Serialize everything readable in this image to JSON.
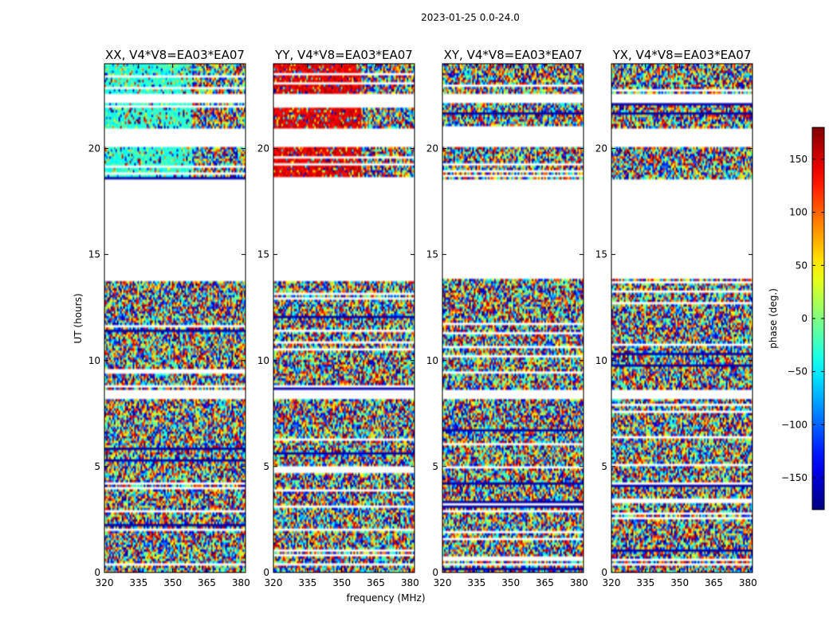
{
  "chart_data": {
    "type": "heatmap",
    "figure_title": "2023-01-25 0.0-24.0",
    "xlabel": "frequency (MHz)",
    "ylabel": "UT (hours)",
    "xlim": [
      320,
      382
    ],
    "ylim": [
      0,
      24
    ],
    "x_ticks": [
      320,
      335,
      350,
      365,
      380
    ],
    "y_ticks": [
      0,
      5,
      10,
      15,
      20
    ],
    "panels": [
      {
        "title": "XX, V4*V8=EA03*EA07",
        "tint_phase": -30,
        "tint_region": "upper"
      },
      {
        "title": "YY, V4*V8=EA03*EA07",
        "tint_phase": 145,
        "tint_region": "upper"
      },
      {
        "title": "XY, V4*V8=EA03*EA07",
        "tint_phase": null,
        "tint_region": "none"
      },
      {
        "title": "YX, V4*V8=EA03*EA07",
        "tint_phase": null,
        "tint_region": "none"
      }
    ],
    "data_gaps_hours": [
      [
        13.9,
        18.5
      ],
      [
        20.1,
        20.9
      ],
      [
        8.2,
        8.6
      ],
      [
        0.3,
        0.45
      ],
      [
        22.2,
        22.6
      ]
    ],
    "colorbar": {
      "label": "phase (deg.)",
      "range": [
        -180,
        180
      ],
      "ticks": [
        150,
        100,
        50,
        0,
        -50,
        -100,
        -150
      ],
      "tick_labels": [
        "150",
        "100",
        "50",
        "0",
        "−50",
        "−100",
        "−150"
      ],
      "colormap": "jet"
    }
  }
}
